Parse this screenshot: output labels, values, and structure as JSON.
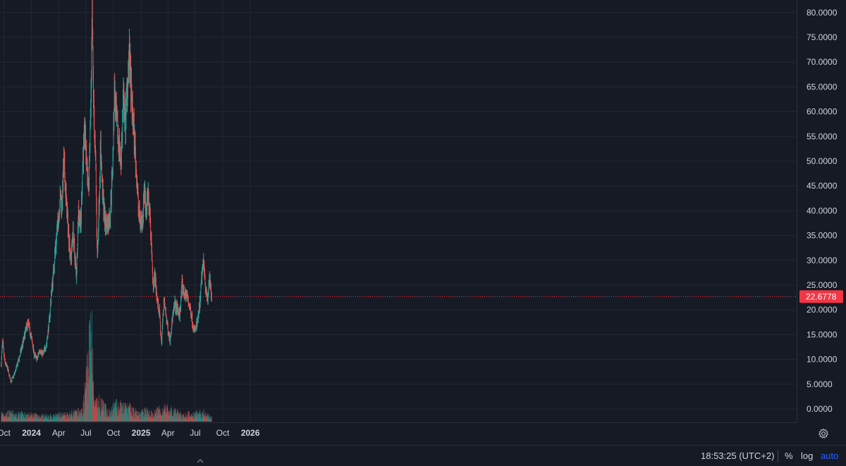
{
  "price_scale": {
    "labels": [
      "80.0000",
      "75.0000",
      "70.0000",
      "65.0000",
      "60.0000",
      "55.0000",
      "50.0000",
      "45.0000",
      "40.0000",
      "35.0000",
      "30.0000",
      "25.0000",
      "20.0000",
      "15.0000",
      "10.0000",
      "5.0000",
      "0.0000"
    ],
    "last_price_label": "22.6778"
  },
  "time_scale": {
    "labels": [
      {
        "text": "Oct",
        "bold": false
      },
      {
        "text": "2024",
        "bold": true
      },
      {
        "text": "Apr",
        "bold": false
      },
      {
        "text": "Jul",
        "bold": false
      },
      {
        "text": "Oct",
        "bold": false
      },
      {
        "text": "2025",
        "bold": true
      },
      {
        "text": "Apr",
        "bold": false
      },
      {
        "text": "Jul",
        "bold": false
      },
      {
        "text": "Oct",
        "bold": false
      },
      {
        "text": "2026",
        "bold": true
      }
    ]
  },
  "bottom_bar": {
    "time": "18:53:25 (UTC+2)",
    "percent": "%",
    "log": "log",
    "auto": "auto"
  },
  "icons": {
    "settings": "gear-icon",
    "scroll": "chevron-up-icon"
  },
  "colors": {
    "background": "#161a25",
    "up": "#26a69a",
    "down": "#ef5350",
    "grid": "#232733",
    "last_price": "#f23645",
    "text": "#d1d4dc",
    "auto": "#2962ff"
  },
  "chart_data": {
    "type": "candlestick",
    "title": "",
    "xlabel": "",
    "ylabel": "",
    "ylim": [
      0,
      82
    ],
    "x_range": [
      "2023-09-18",
      "2026-03-05"
    ],
    "x_ticks": [
      "2023-10-01",
      "2024-01-01",
      "2024-04-01",
      "2024-07-01",
      "2024-10-01",
      "2025-01-01",
      "2025-04-01",
      "2025-07-01",
      "2025-10-01",
      "2026-01-01"
    ],
    "y_ticks": [
      80,
      75,
      70,
      65,
      60,
      55,
      50,
      45,
      40,
      35,
      30,
      25,
      20,
      15,
      10,
      5,
      0
    ],
    "last_price": 22.6778,
    "grid": true,
    "price_path": [
      [
        "2023-09-22",
        9
      ],
      [
        "2023-09-26",
        13.5
      ],
      [
        "2023-10-04",
        9.5
      ],
      [
        "2023-10-14",
        8
      ],
      [
        "2023-10-24",
        5.5
      ],
      [
        "2023-11-05",
        7
      ],
      [
        "2023-11-20",
        10
      ],
      [
        "2023-12-04",
        13.5
      ],
      [
        "2023-12-10",
        15
      ],
      [
        "2023-12-20",
        17.5
      ],
      [
        "2024-01-02",
        14
      ],
      [
        "2024-01-10",
        11
      ],
      [
        "2024-01-20",
        10
      ],
      [
        "2024-01-28",
        12
      ],
      [
        "2024-02-08",
        11
      ],
      [
        "2024-02-20",
        13
      ],
      [
        "2024-03-01",
        18
      ],
      [
        "2024-03-07",
        23
      ],
      [
        "2024-03-15",
        28
      ],
      [
        "2024-03-22",
        33
      ],
      [
        "2024-03-30",
        38
      ],
      [
        "2024-04-07",
        43
      ],
      [
        "2024-04-12",
        41
      ],
      [
        "2024-04-18",
        50
      ],
      [
        "2024-04-22",
        46
      ],
      [
        "2024-04-28",
        40
      ],
      [
        "2024-05-06",
        34
      ],
      [
        "2024-05-12",
        30
      ],
      [
        "2024-05-18",
        36
      ],
      [
        "2024-05-26",
        30
      ],
      [
        "2024-05-30",
        27
      ],
      [
        "2024-06-06",
        40
      ],
      [
        "2024-06-14",
        37
      ],
      [
        "2024-06-20",
        50
      ],
      [
        "2024-06-27",
        56
      ],
      [
        "2024-07-03",
        50
      ],
      [
        "2024-07-10",
        44
      ],
      [
        "2024-07-18",
        62
      ],
      [
        "2024-07-22",
        78
      ],
      [
        "2024-07-27",
        60
      ],
      [
        "2024-08-03",
        48
      ],
      [
        "2024-08-08",
        30
      ],
      [
        "2024-08-14",
        42
      ],
      [
        "2024-08-19",
        53
      ],
      [
        "2024-08-25",
        44
      ],
      [
        "2024-09-02",
        38
      ],
      [
        "2024-09-10",
        37
      ],
      [
        "2024-09-20",
        39
      ],
      [
        "2024-09-28",
        49
      ],
      [
        "2024-10-04",
        64
      ],
      [
        "2024-10-12",
        57
      ],
      [
        "2024-10-20",
        53
      ],
      [
        "2024-10-26",
        50
      ],
      [
        "2024-11-03",
        62
      ],
      [
        "2024-11-10",
        58
      ],
      [
        "2024-11-18",
        68
      ],
      [
        "2024-11-24",
        71
      ],
      [
        "2024-11-30",
        62
      ],
      [
        "2024-12-08",
        56
      ],
      [
        "2024-12-16",
        48
      ],
      [
        "2024-12-24",
        40
      ],
      [
        "2024-12-30",
        38
      ],
      [
        "2025-01-06",
        38
      ],
      [
        "2025-01-12",
        45
      ],
      [
        "2025-01-18",
        40
      ],
      [
        "2025-01-24",
        43
      ],
      [
        "2025-01-30",
        40
      ],
      [
        "2025-02-04",
        34
      ],
      [
        "2025-02-10",
        25
      ],
      [
        "2025-02-16",
        27
      ],
      [
        "2025-02-24",
        22
      ],
      [
        "2025-03-04",
        19
      ],
      [
        "2025-03-10",
        13
      ],
      [
        "2025-03-18",
        22
      ],
      [
        "2025-03-25",
        19
      ],
      [
        "2025-04-01",
        16
      ],
      [
        "2025-04-08",
        14
      ],
      [
        "2025-04-15",
        18
      ],
      [
        "2025-04-24",
        21
      ],
      [
        "2025-05-02",
        20
      ],
      [
        "2025-05-10",
        19
      ],
      [
        "2025-05-18",
        25
      ],
      [
        "2025-05-26",
        23
      ],
      [
        "2025-06-03",
        23
      ],
      [
        "2025-06-10",
        21
      ],
      [
        "2025-06-18",
        19
      ],
      [
        "2025-06-26",
        16
      ],
      [
        "2025-07-02",
        16
      ],
      [
        "2025-07-10",
        18
      ],
      [
        "2025-07-18",
        22
      ],
      [
        "2025-07-24",
        28
      ],
      [
        "2025-07-30",
        30
      ],
      [
        "2025-08-05",
        24
      ],
      [
        "2025-08-12",
        22
      ],
      [
        "2025-08-17",
        26
      ],
      [
        "2025-08-22",
        24.5
      ],
      [
        "2025-08-25",
        22.68
      ]
    ],
    "volume_path": [
      [
        "2023-09-22",
        1.6
      ],
      [
        "2024-03-01",
        1.0
      ],
      [
        "2024-06-20",
        1.8
      ],
      [
        "2024-07-22",
        19
      ],
      [
        "2024-07-28",
        3
      ],
      [
        "2024-08-15",
        3.5
      ],
      [
        "2024-09-20",
        1.5
      ],
      [
        "2024-10-04",
        3
      ],
      [
        "2024-11-24",
        2.5
      ],
      [
        "2024-12-30",
        1.2
      ],
      [
        "2025-01-10",
        2.0
      ],
      [
        "2025-02-10",
        1.6
      ],
      [
        "2025-03-20",
        2.5
      ],
      [
        "2025-05-20",
        1.2
      ],
      [
        "2025-07-24",
        1.8
      ],
      [
        "2025-08-25",
        0.8
      ]
    ]
  }
}
